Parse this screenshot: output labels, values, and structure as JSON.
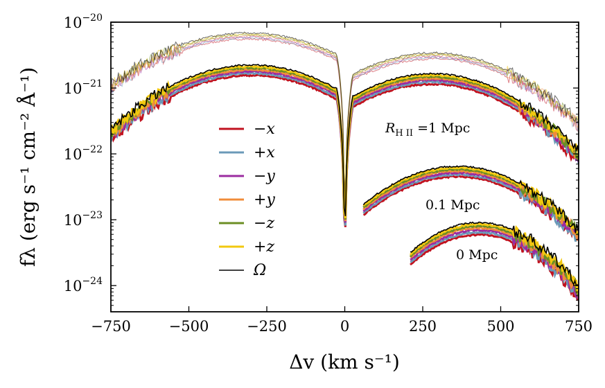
{
  "chart_data": {
    "type": "line",
    "title": "",
    "xlabel": "Δv  (km s⁻¹)",
    "ylabel": "fλ  (erg s⁻¹ cm⁻² Å⁻¹)",
    "xlim": [
      -750,
      750
    ],
    "ylim": [
      4e-25,
      1e-20
    ],
    "yscale": "log",
    "x_ticks": [
      {
        "value": -750,
        "label": "−750"
      },
      {
        "value": -500,
        "label": "−500"
      },
      {
        "value": -250,
        "label": "−250"
      },
      {
        "value": 0,
        "label": "0"
      },
      {
        "value": 250,
        "label": "250"
      },
      {
        "value": 500,
        "label": "500"
      },
      {
        "value": 750,
        "label": "750"
      }
    ],
    "y_ticks": [
      {
        "value": 1e-20,
        "base": "10",
        "exp": "−20"
      },
      {
        "value": 1e-21,
        "base": "10",
        "exp": "−21"
      },
      {
        "value": 1e-22,
        "base": "10",
        "exp": "−22"
      },
      {
        "value": 1e-23,
        "base": "10",
        "exp": "−23"
      },
      {
        "value": 1e-24,
        "base": "10",
        "exp": "−24"
      }
    ],
    "legend": [
      {
        "name": "−x",
        "color": "#c1121f"
      },
      {
        "name": "+x",
        "color": "#6b9ab8"
      },
      {
        "name": "−y",
        "color": "#9b2ca0"
      },
      {
        "name": "+y",
        "color": "#f08c3a"
      },
      {
        "name": "−z",
        "color": "#6b8e23"
      },
      {
        "name": "+z",
        "color": "#f2c80f"
      },
      {
        "name": "Ω",
        "color": "#000000"
      }
    ],
    "legend_position": "center-left",
    "annotations": [
      {
        "text": "R",
        "sub": "H II",
        "rest": " =1 Mpc"
      },
      {
        "text": "0.1 Mpc"
      },
      {
        "text": "0 Mpc"
      }
    ],
    "series": [
      {
        "name": "R_HII = 1 Mpc (thin)",
        "group": "1Mpc",
        "style": "thin",
        "blue_peak_v": -310,
        "blue_peak_f": 6.2e-21,
        "red_peak_v": 285,
        "red_peak_f": 3.1e-21
      },
      {
        "name": "R_HII = 1 Mpc",
        "group": "1Mpc",
        "style": "thick",
        "blue_peak_v": -300,
        "blue_peak_f": 1.9e-21,
        "red_peak_v": 280,
        "red_peak_f": 1.4e-21
      },
      {
        "name": "R_HII = 0.1 Mpc",
        "group": "0.1Mpc",
        "style": "thick",
        "red_peak_v": 360,
        "red_peak_f": 5.5e-23
      },
      {
        "name": "R_HII = 0 Mpc",
        "group": "0Mpc",
        "style": "thick",
        "red_peak_v": 430,
        "red_peak_f": 7.5e-24
      }
    ]
  }
}
